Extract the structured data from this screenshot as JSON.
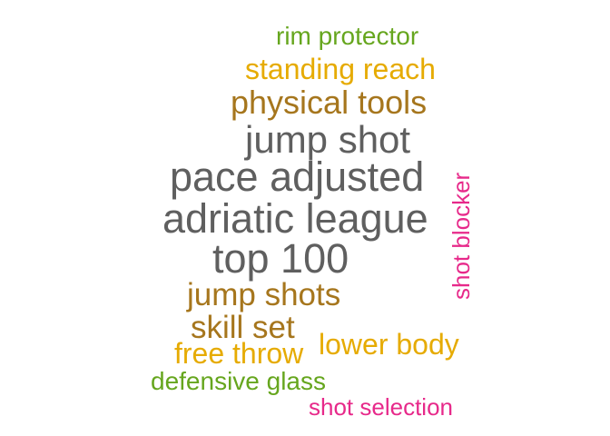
{
  "colors": {
    "gray": "#5f5f5f",
    "brown": "#a6761d",
    "gold": "#e6ab02",
    "green": "#66a61e",
    "pink": "#e7298a"
  },
  "words": [
    {
      "text": "rim protector",
      "color": "green"
    },
    {
      "text": "standing reach",
      "color": "gold"
    },
    {
      "text": "physical tools",
      "color": "brown"
    },
    {
      "text": "jump shot",
      "color": "gray"
    },
    {
      "text": "pace adjusted",
      "color": "gray"
    },
    {
      "text": "adriatic league",
      "color": "gray"
    },
    {
      "text": "top 100",
      "color": "gray"
    },
    {
      "text": "jump shots",
      "color": "brown"
    },
    {
      "text": "skill set",
      "color": "brown"
    },
    {
      "text": "free throw",
      "color": "gold"
    },
    {
      "text": "lower body",
      "color": "gold"
    },
    {
      "text": "defensive glass",
      "color": "green"
    },
    {
      "text": "shot selection",
      "color": "pink"
    },
    {
      "text": "shot blocker",
      "color": "pink"
    }
  ]
}
